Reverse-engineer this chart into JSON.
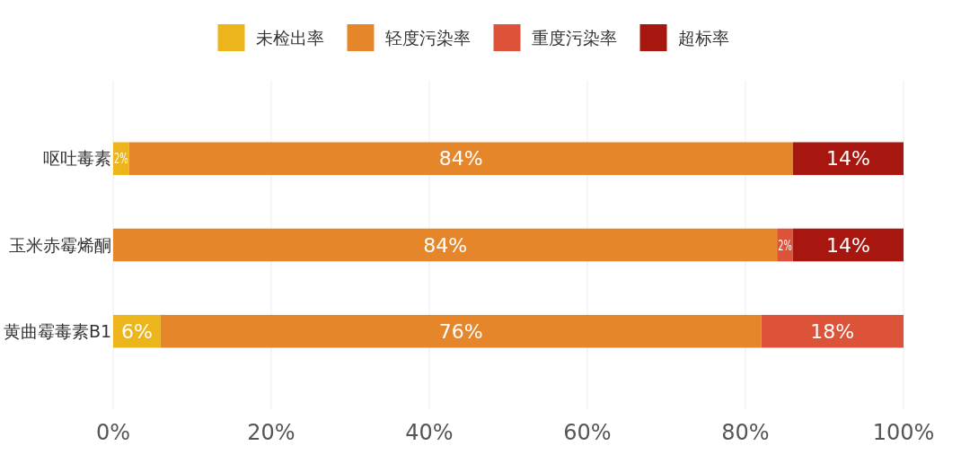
{
  "chart_data": {
    "type": "bar",
    "orientation": "horizontal",
    "stacked": true,
    "categories": [
      "呕吐毒素",
      "玉米赤霉烯酮",
      "黄曲霉毒素B1"
    ],
    "series": [
      {
        "name": "未检出率",
        "color": "#ebb51b",
        "values": [
          2,
          0,
          6
        ],
        "value_labels": [
          "2%",
          null,
          "6%"
        ]
      },
      {
        "name": "轻度污染率",
        "color": "#e6862a",
        "values": [
          84,
          84,
          76
        ],
        "value_labels": [
          "84%",
          "84%",
          "76%"
        ]
      },
      {
        "name": "重度污染率",
        "color": "#dd533a",
        "values": [
          0,
          2,
          18
        ],
        "value_labels": [
          null,
          "2%",
          "18%"
        ]
      },
      {
        "name": "超标率",
        "color": "#a8170f",
        "values": [
          14,
          14,
          0
        ],
        "value_labels": [
          "14%",
          "14%",
          null
        ]
      }
    ],
    "xlim": [
      0,
      100
    ],
    "xticks": [
      {
        "value": 0,
        "label": "0%"
      },
      {
        "value": 20,
        "label": "20%"
      },
      {
        "value": 40,
        "label": "40%"
      },
      {
        "value": 60,
        "label": "60%"
      },
      {
        "value": 80,
        "label": "80%"
      },
      {
        "value": 100,
        "label": "100%"
      }
    ],
    "grid": "x",
    "legend": "top"
  }
}
